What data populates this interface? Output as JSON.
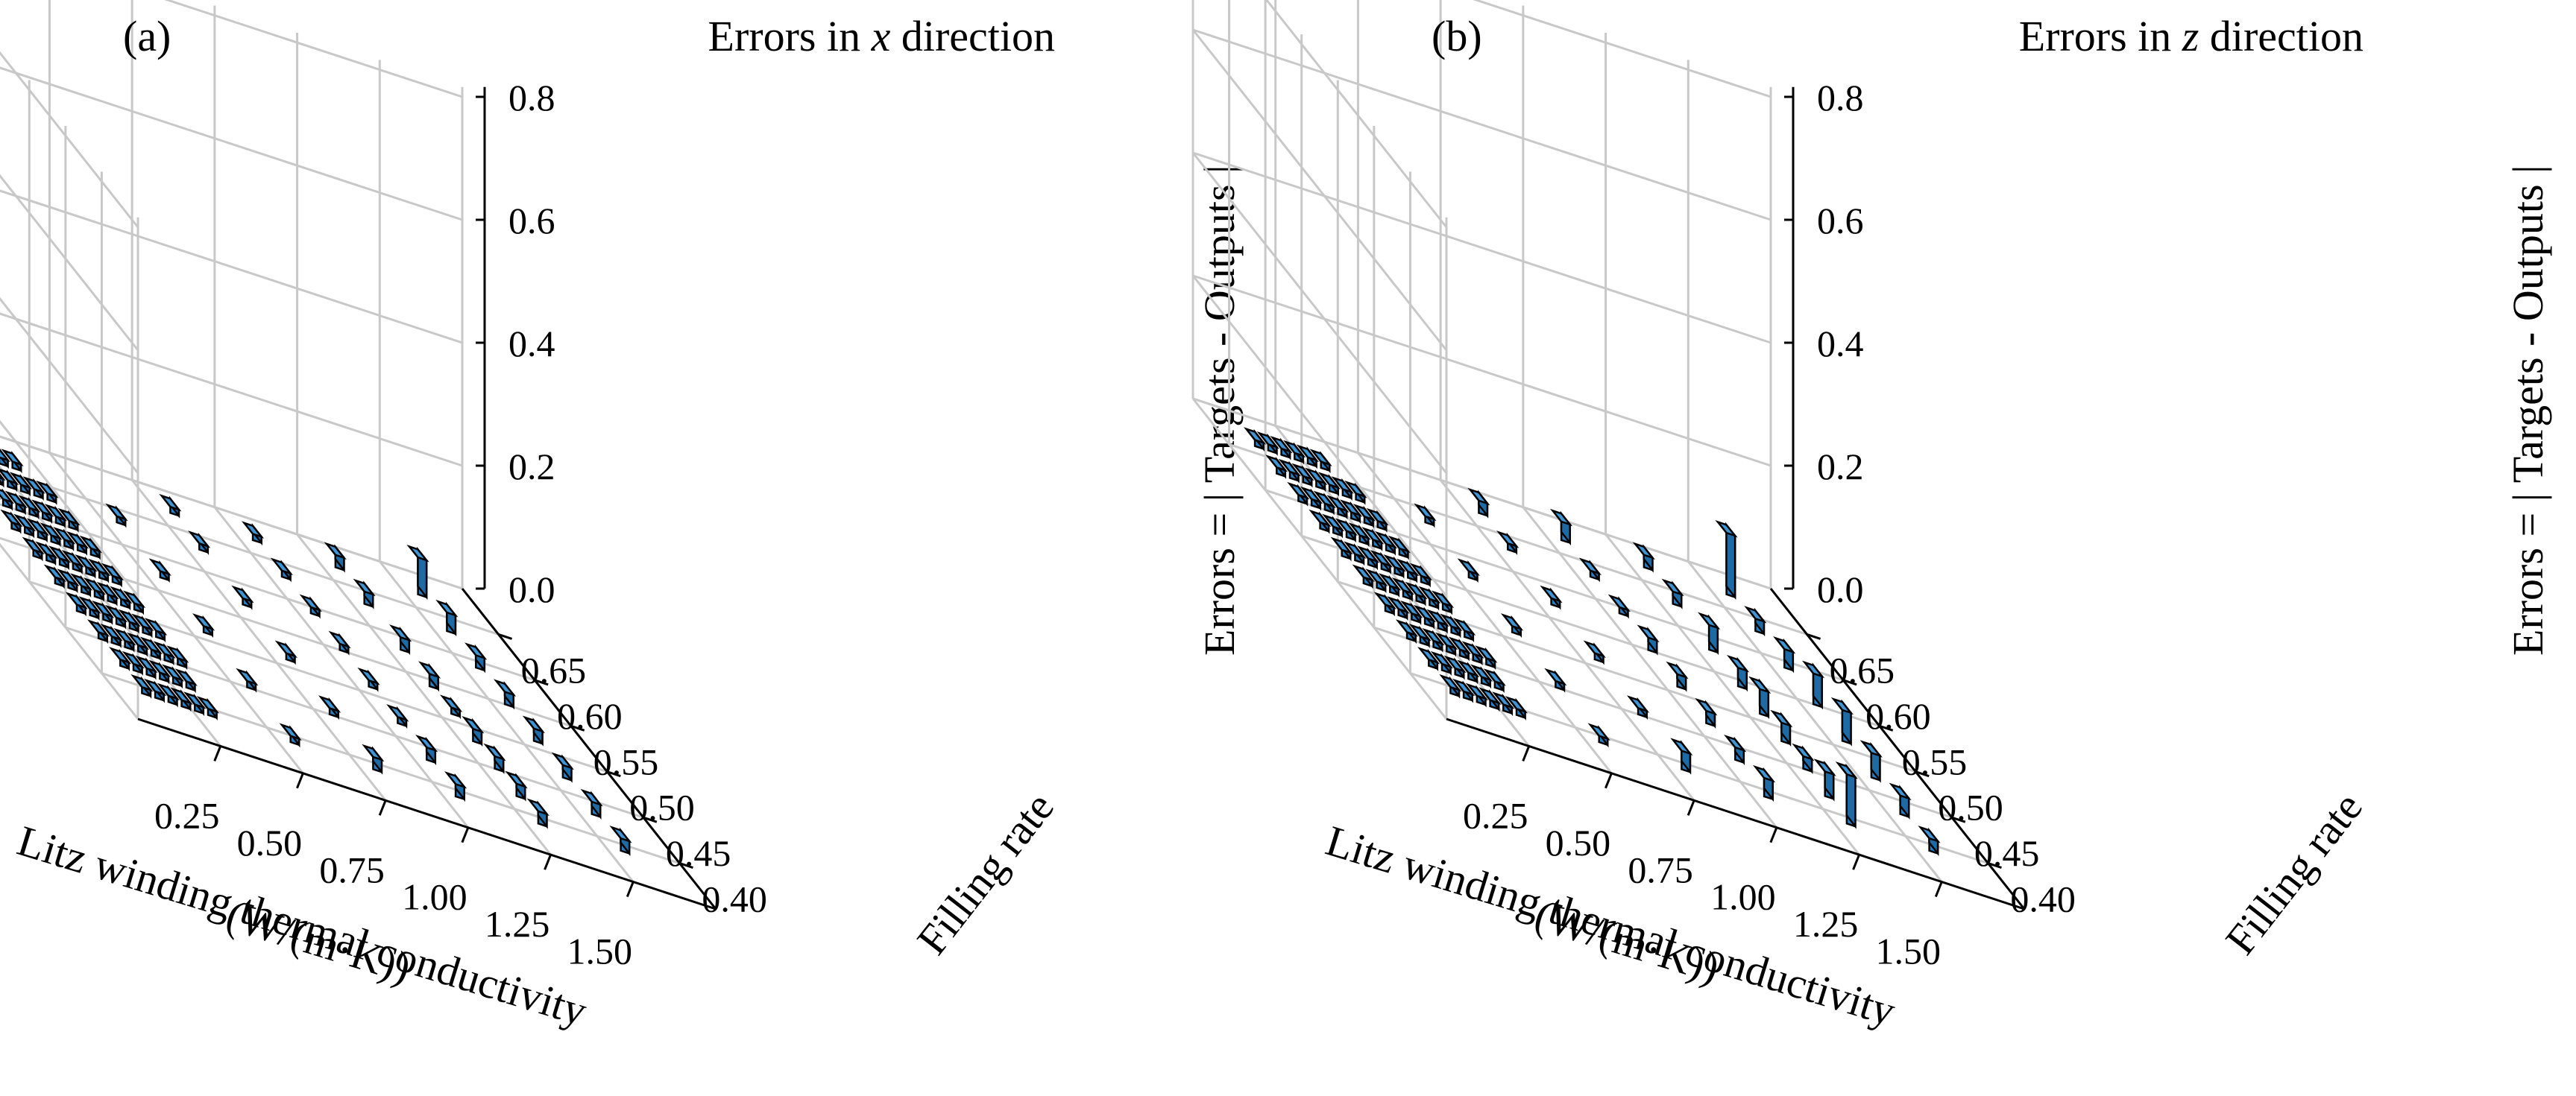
{
  "panels": [
    {
      "label": "(a)",
      "title_prefix": "Errors in ",
      "title_var": "x",
      "title_suffix": " direction"
    },
    {
      "label": "(b)",
      "title_prefix": "Errors in ",
      "title_var": "z",
      "title_suffix": " direction"
    }
  ],
  "axes": {
    "x_label_line1": "Litz winding thermal conductivity",
    "x_label_line2": "(W/(m·K))",
    "y_label": "Filling rate",
    "z_label": "Errors = | Targets - Outputs |",
    "x_ticks": [
      "0.25",
      "0.50",
      "0.75",
      "1.00",
      "1.25",
      "1.50"
    ],
    "y_ticks": [
      "0.40",
      "0.45",
      "0.50",
      "0.55",
      "0.60",
      "0.65"
    ],
    "z_ticks": [
      "0.0",
      "0.2",
      "0.4",
      "0.6",
      "0.8"
    ]
  },
  "colors": {
    "bar": "#2a7fc0",
    "bar_top": "#3f95d4",
    "bar_side": "#1d6aa5",
    "edge": "#000000",
    "grid": "#c8c8c8"
  },
  "chart_data": [
    {
      "type": "bar3d",
      "title": "Errors in x direction",
      "xlabel": "Litz winding thermal conductivity (W/(m·K))",
      "ylabel": "Filling rate",
      "zlabel": "Errors = | Targets - Outputs |",
      "zlim": [
        0,
        0.8
      ],
      "grid": true,
      "bars": [
        {
          "x": 0.1,
          "y": 0.66,
          "z": 0.01
        },
        {
          "x": 0.14,
          "y": 0.66,
          "z": 0.01
        },
        {
          "x": 0.18,
          "y": 0.66,
          "z": 0.01
        },
        {
          "x": 0.22,
          "y": 0.66,
          "z": 0.01
        },
        {
          "x": 0.26,
          "y": 0.66,
          "z": 0.01
        },
        {
          "x": 0.3,
          "y": 0.66,
          "z": 0.01
        },
        {
          "x": 0.1,
          "y": 0.63,
          "z": 0.01
        },
        {
          "x": 0.14,
          "y": 0.63,
          "z": 0.01
        },
        {
          "x": 0.18,
          "y": 0.63,
          "z": 0.01
        },
        {
          "x": 0.22,
          "y": 0.63,
          "z": 0.01
        },
        {
          "x": 0.26,
          "y": 0.63,
          "z": 0.01
        },
        {
          "x": 0.3,
          "y": 0.63,
          "z": 0.01
        },
        {
          "x": 0.34,
          "y": 0.63,
          "z": 0.01
        },
        {
          "x": 0.1,
          "y": 0.6,
          "z": 0.01
        },
        {
          "x": 0.14,
          "y": 0.6,
          "z": 0.01
        },
        {
          "x": 0.18,
          "y": 0.6,
          "z": 0.01
        },
        {
          "x": 0.22,
          "y": 0.6,
          "z": 0.01
        },
        {
          "x": 0.26,
          "y": 0.6,
          "z": 0.01
        },
        {
          "x": 0.3,
          "y": 0.6,
          "z": 0.01
        },
        {
          "x": 0.34,
          "y": 0.6,
          "z": 0.01
        },
        {
          "x": 0.1,
          "y": 0.57,
          "z": 0.01
        },
        {
          "x": 0.14,
          "y": 0.57,
          "z": 0.01
        },
        {
          "x": 0.18,
          "y": 0.57,
          "z": 0.01
        },
        {
          "x": 0.22,
          "y": 0.57,
          "z": 0.01
        },
        {
          "x": 0.26,
          "y": 0.57,
          "z": 0.01
        },
        {
          "x": 0.3,
          "y": 0.57,
          "z": 0.01
        },
        {
          "x": 0.34,
          "y": 0.57,
          "z": 0.01
        },
        {
          "x": 0.1,
          "y": 0.54,
          "z": 0.01
        },
        {
          "x": 0.14,
          "y": 0.54,
          "z": 0.01
        },
        {
          "x": 0.18,
          "y": 0.54,
          "z": 0.01
        },
        {
          "x": 0.22,
          "y": 0.54,
          "z": 0.01
        },
        {
          "x": 0.26,
          "y": 0.54,
          "z": 0.01
        },
        {
          "x": 0.3,
          "y": 0.54,
          "z": 0.01
        },
        {
          "x": 0.34,
          "y": 0.54,
          "z": 0.01
        },
        {
          "x": 0.1,
          "y": 0.51,
          "z": 0.01
        },
        {
          "x": 0.14,
          "y": 0.51,
          "z": 0.01
        },
        {
          "x": 0.18,
          "y": 0.51,
          "z": 0.01
        },
        {
          "x": 0.22,
          "y": 0.51,
          "z": 0.01
        },
        {
          "x": 0.26,
          "y": 0.51,
          "z": 0.01
        },
        {
          "x": 0.3,
          "y": 0.51,
          "z": 0.01
        },
        {
          "x": 0.34,
          "y": 0.51,
          "z": 0.01
        },
        {
          "x": 0.1,
          "y": 0.48,
          "z": 0.01
        },
        {
          "x": 0.14,
          "y": 0.48,
          "z": 0.01
        },
        {
          "x": 0.18,
          "y": 0.48,
          "z": 0.01
        },
        {
          "x": 0.22,
          "y": 0.48,
          "z": 0.01
        },
        {
          "x": 0.26,
          "y": 0.48,
          "z": 0.01
        },
        {
          "x": 0.3,
          "y": 0.48,
          "z": 0.01
        },
        {
          "x": 0.34,
          "y": 0.48,
          "z": 0.01
        },
        {
          "x": 0.1,
          "y": 0.45,
          "z": 0.01
        },
        {
          "x": 0.14,
          "y": 0.45,
          "z": 0.01
        },
        {
          "x": 0.18,
          "y": 0.45,
          "z": 0.01
        },
        {
          "x": 0.22,
          "y": 0.45,
          "z": 0.01
        },
        {
          "x": 0.26,
          "y": 0.45,
          "z": 0.01
        },
        {
          "x": 0.3,
          "y": 0.45,
          "z": 0.01
        },
        {
          "x": 0.34,
          "y": 0.45,
          "z": 0.01
        },
        {
          "x": 0.1,
          "y": 0.42,
          "z": 0.01
        },
        {
          "x": 0.14,
          "y": 0.42,
          "z": 0.01
        },
        {
          "x": 0.18,
          "y": 0.42,
          "z": 0.01
        },
        {
          "x": 0.22,
          "y": 0.42,
          "z": 0.01
        },
        {
          "x": 0.26,
          "y": 0.42,
          "z": 0.01
        },
        {
          "x": 0.3,
          "y": 0.42,
          "z": 0.01
        },
        {
          "x": 0.1,
          "y": 0.39,
          "z": 0.01
        },
        {
          "x": 0.14,
          "y": 0.39,
          "z": 0.01
        },
        {
          "x": 0.18,
          "y": 0.39,
          "z": 0.01
        },
        {
          "x": 0.22,
          "y": 0.39,
          "z": 0.01
        },
        {
          "x": 0.26,
          "y": 0.39,
          "z": 0.01
        },
        {
          "x": 0.3,
          "y": 0.39,
          "z": 0.01
        },
        {
          "x": 0.55,
          "y": 0.39,
          "z": 0.01
        },
        {
          "x": 0.55,
          "y": 0.45,
          "z": 0.01
        },
        {
          "x": 0.55,
          "y": 0.51,
          "z": 0.01
        },
        {
          "x": 0.55,
          "y": 0.57,
          "z": 0.01
        },
        {
          "x": 0.55,
          "y": 0.63,
          "z": 0.01
        },
        {
          "x": 0.8,
          "y": 0.39,
          "z": 0.02
        },
        {
          "x": 0.8,
          "y": 0.45,
          "z": 0.01
        },
        {
          "x": 0.8,
          "y": 0.51,
          "z": 0.01
        },
        {
          "x": 0.8,
          "y": 0.57,
          "z": 0.01
        },
        {
          "x": 0.8,
          "y": 0.63,
          "z": 0.01
        },
        {
          "x": 0.8,
          "y": 0.67,
          "z": 0.01
        },
        {
          "x": 1.05,
          "y": 0.39,
          "z": 0.02
        },
        {
          "x": 1.05,
          "y": 0.43,
          "z": 0.02
        },
        {
          "x": 1.05,
          "y": 0.47,
          "z": 0.01
        },
        {
          "x": 1.05,
          "y": 0.51,
          "z": 0.01
        },
        {
          "x": 1.05,
          "y": 0.55,
          "z": 0.01
        },
        {
          "x": 1.05,
          "y": 0.59,
          "z": 0.01
        },
        {
          "x": 1.05,
          "y": 0.63,
          "z": 0.01
        },
        {
          "x": 1.05,
          "y": 0.67,
          "z": 0.01
        },
        {
          "x": 1.3,
          "y": 0.39,
          "z": 0.02
        },
        {
          "x": 1.3,
          "y": 0.42,
          "z": 0.02
        },
        {
          "x": 1.3,
          "y": 0.45,
          "z": 0.02
        },
        {
          "x": 1.3,
          "y": 0.48,
          "z": 0.02
        },
        {
          "x": 1.3,
          "y": 0.51,
          "z": 0.01
        },
        {
          "x": 1.3,
          "y": 0.54,
          "z": 0.02
        },
        {
          "x": 1.3,
          "y": 0.58,
          "z": 0.02
        },
        {
          "x": 1.3,
          "y": 0.63,
          "z": 0.02
        },
        {
          "x": 1.3,
          "y": 0.67,
          "z": 0.02
        },
        {
          "x": 1.55,
          "y": 0.39,
          "z": 0.02
        },
        {
          "x": 1.55,
          "y": 0.43,
          "z": 0.02
        },
        {
          "x": 1.55,
          "y": 0.47,
          "z": 0.02
        },
        {
          "x": 1.55,
          "y": 0.51,
          "z": 0.02
        },
        {
          "x": 1.55,
          "y": 0.55,
          "z": 0.02
        },
        {
          "x": 1.55,
          "y": 0.59,
          "z": 0.02
        },
        {
          "x": 1.55,
          "y": 0.63,
          "z": 0.03
        },
        {
          "x": 1.55,
          "y": 0.67,
          "z": 0.06
        }
      ]
    },
    {
      "type": "bar3d",
      "title": "Errors in z direction",
      "xlabel": "Litz winding thermal conductivity (W/(m·K))",
      "ylabel": "Filling rate",
      "zlabel": "Errors = | Targets - Outputs |",
      "zlim": [
        0,
        0.8
      ],
      "grid": true,
      "bars": [
        {
          "x": 0.1,
          "y": 0.66,
          "z": 0.01
        },
        {
          "x": 0.14,
          "y": 0.66,
          "z": 0.01
        },
        {
          "x": 0.18,
          "y": 0.66,
          "z": 0.01
        },
        {
          "x": 0.22,
          "y": 0.66,
          "z": 0.01
        },
        {
          "x": 0.26,
          "y": 0.66,
          "z": 0.01
        },
        {
          "x": 0.3,
          "y": 0.66,
          "z": 0.01
        },
        {
          "x": 0.1,
          "y": 0.63,
          "z": 0.01
        },
        {
          "x": 0.14,
          "y": 0.63,
          "z": 0.01
        },
        {
          "x": 0.18,
          "y": 0.63,
          "z": 0.01
        },
        {
          "x": 0.22,
          "y": 0.63,
          "z": 0.01
        },
        {
          "x": 0.26,
          "y": 0.63,
          "z": 0.01
        },
        {
          "x": 0.3,
          "y": 0.63,
          "z": 0.01
        },
        {
          "x": 0.34,
          "y": 0.63,
          "z": 0.01
        },
        {
          "x": 0.1,
          "y": 0.6,
          "z": 0.01
        },
        {
          "x": 0.14,
          "y": 0.6,
          "z": 0.01
        },
        {
          "x": 0.18,
          "y": 0.6,
          "z": 0.01
        },
        {
          "x": 0.22,
          "y": 0.6,
          "z": 0.01
        },
        {
          "x": 0.26,
          "y": 0.6,
          "z": 0.01
        },
        {
          "x": 0.3,
          "y": 0.6,
          "z": 0.01
        },
        {
          "x": 0.34,
          "y": 0.6,
          "z": 0.01
        },
        {
          "x": 0.1,
          "y": 0.57,
          "z": 0.01
        },
        {
          "x": 0.14,
          "y": 0.57,
          "z": 0.01
        },
        {
          "x": 0.18,
          "y": 0.57,
          "z": 0.01
        },
        {
          "x": 0.22,
          "y": 0.57,
          "z": 0.01
        },
        {
          "x": 0.26,
          "y": 0.57,
          "z": 0.01
        },
        {
          "x": 0.3,
          "y": 0.57,
          "z": 0.01
        },
        {
          "x": 0.34,
          "y": 0.57,
          "z": 0.01
        },
        {
          "x": 0.1,
          "y": 0.54,
          "z": 0.01
        },
        {
          "x": 0.14,
          "y": 0.54,
          "z": 0.01
        },
        {
          "x": 0.18,
          "y": 0.54,
          "z": 0.01
        },
        {
          "x": 0.22,
          "y": 0.54,
          "z": 0.01
        },
        {
          "x": 0.26,
          "y": 0.54,
          "z": 0.01
        },
        {
          "x": 0.3,
          "y": 0.54,
          "z": 0.01
        },
        {
          "x": 0.34,
          "y": 0.54,
          "z": 0.01
        },
        {
          "x": 0.1,
          "y": 0.51,
          "z": 0.01
        },
        {
          "x": 0.14,
          "y": 0.51,
          "z": 0.01
        },
        {
          "x": 0.18,
          "y": 0.51,
          "z": 0.01
        },
        {
          "x": 0.22,
          "y": 0.51,
          "z": 0.01
        },
        {
          "x": 0.26,
          "y": 0.51,
          "z": 0.01
        },
        {
          "x": 0.3,
          "y": 0.51,
          "z": 0.01
        },
        {
          "x": 0.34,
          "y": 0.51,
          "z": 0.01
        },
        {
          "x": 0.1,
          "y": 0.48,
          "z": 0.01
        },
        {
          "x": 0.14,
          "y": 0.48,
          "z": 0.01
        },
        {
          "x": 0.18,
          "y": 0.48,
          "z": 0.01
        },
        {
          "x": 0.22,
          "y": 0.48,
          "z": 0.01
        },
        {
          "x": 0.26,
          "y": 0.48,
          "z": 0.01
        },
        {
          "x": 0.3,
          "y": 0.48,
          "z": 0.01
        },
        {
          "x": 0.34,
          "y": 0.48,
          "z": 0.01
        },
        {
          "x": 0.1,
          "y": 0.45,
          "z": 0.01
        },
        {
          "x": 0.14,
          "y": 0.45,
          "z": 0.01
        },
        {
          "x": 0.18,
          "y": 0.45,
          "z": 0.01
        },
        {
          "x": 0.22,
          "y": 0.45,
          "z": 0.01
        },
        {
          "x": 0.26,
          "y": 0.45,
          "z": 0.01
        },
        {
          "x": 0.3,
          "y": 0.45,
          "z": 0.01
        },
        {
          "x": 0.34,
          "y": 0.45,
          "z": 0.01
        },
        {
          "x": 0.1,
          "y": 0.42,
          "z": 0.01
        },
        {
          "x": 0.14,
          "y": 0.42,
          "z": 0.01
        },
        {
          "x": 0.18,
          "y": 0.42,
          "z": 0.01
        },
        {
          "x": 0.22,
          "y": 0.42,
          "z": 0.01
        },
        {
          "x": 0.26,
          "y": 0.42,
          "z": 0.01
        },
        {
          "x": 0.3,
          "y": 0.42,
          "z": 0.01
        },
        {
          "x": 0.1,
          "y": 0.39,
          "z": 0.01
        },
        {
          "x": 0.14,
          "y": 0.39,
          "z": 0.01
        },
        {
          "x": 0.18,
          "y": 0.39,
          "z": 0.01
        },
        {
          "x": 0.22,
          "y": 0.39,
          "z": 0.01
        },
        {
          "x": 0.26,
          "y": 0.39,
          "z": 0.01
        },
        {
          "x": 0.3,
          "y": 0.39,
          "z": 0.01
        },
        {
          "x": 0.55,
          "y": 0.39,
          "z": 0.01
        },
        {
          "x": 0.55,
          "y": 0.45,
          "z": 0.01
        },
        {
          "x": 0.55,
          "y": 0.51,
          "z": 0.01
        },
        {
          "x": 0.55,
          "y": 0.57,
          "z": 0.01
        },
        {
          "x": 0.55,
          "y": 0.63,
          "z": 0.01
        },
        {
          "x": 0.8,
          "y": 0.39,
          "z": 0.03
        },
        {
          "x": 0.8,
          "y": 0.45,
          "z": 0.01
        },
        {
          "x": 0.8,
          "y": 0.51,
          "z": 0.01
        },
        {
          "x": 0.8,
          "y": 0.57,
          "z": 0.01
        },
        {
          "x": 0.8,
          "y": 0.63,
          "z": 0.01
        },
        {
          "x": 0.8,
          "y": 0.67,
          "z": 0.02
        },
        {
          "x": 1.05,
          "y": 0.39,
          "z": 0.03
        },
        {
          "x": 1.05,
          "y": 0.43,
          "z": 0.02
        },
        {
          "x": 1.05,
          "y": 0.47,
          "z": 0.02
        },
        {
          "x": 1.05,
          "y": 0.51,
          "z": 0.02
        },
        {
          "x": 1.05,
          "y": 0.55,
          "z": 0.02
        },
        {
          "x": 1.05,
          "y": 0.59,
          "z": 0.01
        },
        {
          "x": 1.05,
          "y": 0.63,
          "z": 0.01
        },
        {
          "x": 1.05,
          "y": 0.67,
          "z": 0.03
        },
        {
          "x": 1.3,
          "y": 0.39,
          "z": 0.08
        },
        {
          "x": 1.3,
          "y": 0.42,
          "z": 0.04
        },
        {
          "x": 1.3,
          "y": 0.45,
          "z": 0.02
        },
        {
          "x": 1.3,
          "y": 0.48,
          "z": 0.03
        },
        {
          "x": 1.3,
          "y": 0.51,
          "z": 0.04
        },
        {
          "x": 1.3,
          "y": 0.54,
          "z": 0.03
        },
        {
          "x": 1.3,
          "y": 0.58,
          "z": 0.04
        },
        {
          "x": 1.3,
          "y": 0.63,
          "z": 0.02
        },
        {
          "x": 1.3,
          "y": 0.67,
          "z": 0.02
        },
        {
          "x": 1.55,
          "y": 0.39,
          "z": 0.02
        },
        {
          "x": 1.55,
          "y": 0.43,
          "z": 0.03
        },
        {
          "x": 1.55,
          "y": 0.47,
          "z": 0.04
        },
        {
          "x": 1.55,
          "y": 0.51,
          "z": 0.05
        },
        {
          "x": 1.55,
          "y": 0.55,
          "z": 0.05
        },
        {
          "x": 1.55,
          "y": 0.59,
          "z": 0.03
        },
        {
          "x": 1.55,
          "y": 0.63,
          "z": 0.02
        },
        {
          "x": 1.55,
          "y": 0.67,
          "z": 0.1
        }
      ]
    }
  ]
}
